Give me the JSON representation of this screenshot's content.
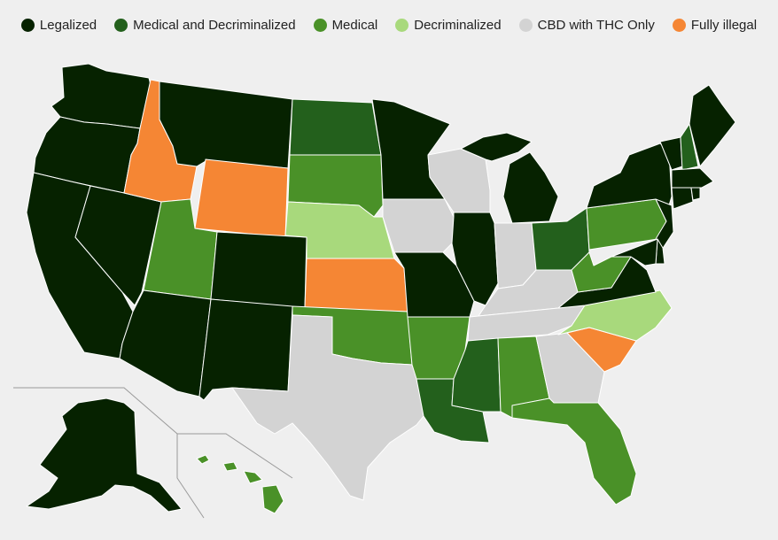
{
  "legend": {
    "items": [
      {
        "label": "Legalized",
        "color": "#062200"
      },
      {
        "label": "Medical and Decriminalized",
        "color": "#23601c"
      },
      {
        "label": "Medical",
        "color": "#4a9128"
      },
      {
        "label": "Decriminalized",
        "color": "#a8d97c"
      },
      {
        "label": "CBD with THC Only",
        "color": "#d3d3d3"
      },
      {
        "label": "Fully illegal",
        "color": "#f58634"
      }
    ]
  },
  "map": {
    "states": {
      "WA": "Legalized",
      "OR": "Legalized",
      "CA": "Legalized",
      "NV": "Legalized",
      "ID": "Fully illegal",
      "MT": "Legalized",
      "WY": "Fully illegal",
      "UT": "Medical",
      "AZ": "Legalized",
      "CO": "Legalized",
      "NM": "Legalized",
      "ND": "Medical and Decriminalized",
      "SD": "Medical",
      "NE": "Decriminalized",
      "KS": "Fully illegal",
      "OK": "Medical",
      "TX": "CBD with THC Only",
      "MN": "Legalized",
      "IA": "CBD with THC Only",
      "MO": "Legalized",
      "AR": "Medical",
      "LA": "Medical and Decriminalized",
      "WI": "CBD with THC Only",
      "IL": "Legalized",
      "MI": "Legalized",
      "IN": "CBD with THC Only",
      "OH": "Medical and Decriminalized",
      "KY": "CBD with THC Only",
      "TN": "CBD with THC Only",
      "MS": "Medical and Decriminalized",
      "AL": "Medical",
      "GA": "CBD with THC Only",
      "FL": "Medical",
      "SC": "Fully illegal",
      "NC": "Decriminalized",
      "VA": "Legalized",
      "WV": "Medical",
      "PA": "Medical",
      "NY": "Legalized",
      "VT": "Legalized",
      "NH": "Medical and Decriminalized",
      "ME": "Legalized",
      "MA": "Legalized",
      "CT": "Legalized",
      "RI": "Legalized",
      "NJ": "Legalized",
      "DE": "Legalized",
      "MD": "Legalized",
      "AK": "Legalized",
      "HI": "Medical"
    }
  }
}
